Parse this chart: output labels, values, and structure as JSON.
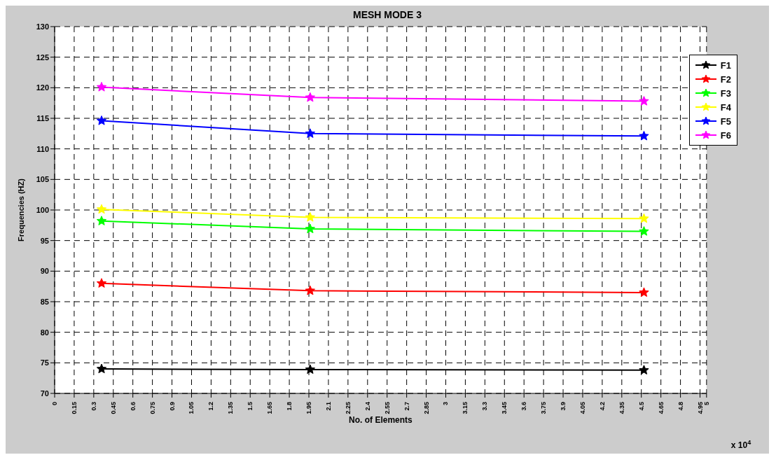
{
  "chart_data": {
    "type": "line",
    "title": "MESH MODE 3",
    "xlabel": "No. of Elements",
    "ylabel": "Frequencies (HZ)",
    "annotations": [
      "x 10$^{4}$"
    ],
    "x": [
      0.36,
      1.96,
      4.52
    ],
    "series": [
      {
        "name": "F1",
        "color": "#000000",
        "values": [
          74,
          73.9,
          73.8
        ]
      },
      {
        "name": "F2",
        "color": "#ff0000",
        "values": [
          88,
          86.8,
          86.5
        ]
      },
      {
        "name": "F3",
        "color": "#00ff00",
        "values": [
          98.2,
          96.9,
          96.5
        ]
      },
      {
        "name": "F4",
        "color": "#ffff00",
        "values": [
          100.1,
          98.8,
          98.6
        ]
      },
      {
        "name": "F5",
        "color": "#0000ff",
        "values": [
          114.6,
          112.5,
          112.1
        ]
      },
      {
        "name": "F6",
        "color": "#ff00ff",
        "values": [
          120.1,
          118.4,
          117.8
        ]
      }
    ],
    "xlim": [
      0,
      5
    ],
    "xticks": [
      0,
      0.15,
      0.3,
      0.45,
      0.6,
      0.75,
      0.9,
      1.05,
      1.2,
      1.35,
      1.5,
      1.65,
      1.8,
      1.95,
      2.1,
      2.25,
      2.4,
      2.55,
      2.7,
      2.85,
      3,
      3.15,
      3.3,
      3.45,
      3.6,
      3.75,
      3.9,
      4.05,
      4.2,
      4.35,
      4.5,
      4.65,
      4.8,
      4.95,
      5
    ],
    "ylim": [
      70,
      130
    ],
    "yticks": [
      70,
      75,
      80,
      85,
      90,
      95,
      100,
      105,
      110,
      115,
      120,
      125,
      130
    ],
    "grid": true,
    "legend": "top right",
    "marker": "star",
    "line_style": "solid"
  }
}
